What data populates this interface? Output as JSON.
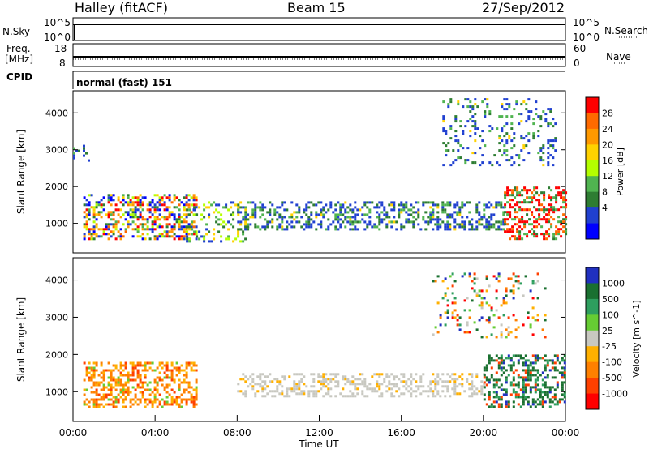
{
  "header": {
    "title": "Halley (fitACF)",
    "beam": "Beam 15",
    "date": "27/Sep/2012"
  },
  "panels": {
    "nsky": {
      "label": "N.Sky",
      "ticks": [
        "10^5",
        "10^0"
      ],
      "right_ticks": [
        "10^5",
        "10^0"
      ],
      "right_label": "N.Search"
    },
    "freq": {
      "label_line1": "Freq.",
      "label_line2": "[MHz]",
      "ticks": [
        "18",
        "8"
      ],
      "right_ticks": [
        "60",
        "0"
      ],
      "right_label": "Nave"
    },
    "cpid": {
      "label": "CPID",
      "text": "normal (fast) 151"
    }
  },
  "chart_data": [
    {
      "type": "heatmap",
      "name": "power",
      "ylabel": "Slant Range [km]",
      "yticks": [
        "4000",
        "3000",
        "2000",
        "1000"
      ],
      "ylim": [
        200,
        4600
      ],
      "colorbar": {
        "label": "Power [dB]",
        "ticks": [
          "28",
          "24",
          "20",
          "16",
          "12",
          "8",
          "4"
        ],
        "colors": [
          "#ff0000",
          "#ff6a00",
          "#ff9900",
          "#ffd200",
          "#b4ff00",
          "#50b450",
          "#2e7d32",
          "#2040d0",
          "#0000ff"
        ]
      },
      "features": [
        {
          "t": [
            0.5,
            6.0
          ],
          "r": [
            600,
            1800
          ],
          "dominant": "mixed high",
          "density": 0.85
        },
        {
          "t": [
            5.5,
            8.5
          ],
          "r": [
            500,
            1600
          ],
          "dominant": "low-mid",
          "density": 0.45
        },
        {
          "t": [
            8.0,
            21.0
          ],
          "r": [
            850,
            1600
          ],
          "dominant": "low",
          "density": 0.7
        },
        {
          "t": [
            21.0,
            24.0
          ],
          "r": [
            600,
            2000
          ],
          "dominant": "high",
          "density": 0.8
        },
        {
          "t": [
            0.0,
            0.8
          ],
          "r": [
            2700,
            3200
          ],
          "dominant": "low",
          "density": 0.4
        },
        {
          "t": [
            18.0,
            23.5
          ],
          "r": [
            2600,
            4400
          ],
          "dominant": "low",
          "density": 0.3
        }
      ]
    },
    {
      "type": "heatmap",
      "name": "velocity",
      "ylabel": "Slant Range [km]",
      "yticks": [
        "4000",
        "3000",
        "2000",
        "1000"
      ],
      "ylim": [
        200,
        4600
      ],
      "xlabel": "Time UT",
      "xticks": [
        "00:00",
        "04:00",
        "08:00",
        "12:00",
        "16:00",
        "20:00",
        "00:00"
      ],
      "colorbar": {
        "label": "Velocity [m s^-1]",
        "ticks": [
          "1000",
          "500",
          "100",
          "25",
          "-25",
          "-100",
          "-500",
          "-1000"
        ],
        "colors": [
          "#2030c0",
          "#1a7030",
          "#2e9e5e",
          "#66cc33",
          "#c8c8c0",
          "#ffb000",
          "#ff8000",
          "#ff4000",
          "#ff0000"
        ]
      },
      "features": [
        {
          "t": [
            0.5,
            6.0
          ],
          "r": [
            600,
            1800
          ],
          "dominant": "negative",
          "density": 0.85
        },
        {
          "t": [
            8.0,
            20.0
          ],
          "r": [
            850,
            1500
          ],
          "dominant": "near-zero",
          "density": 0.7
        },
        {
          "t": [
            20.0,
            24.0
          ],
          "r": [
            600,
            2000
          ],
          "dominant": "positive",
          "density": 0.8
        },
        {
          "t": [
            17.5,
            23.0
          ],
          "r": [
            2500,
            4200
          ],
          "dominant": "mixed",
          "density": 0.25
        }
      ]
    }
  ]
}
